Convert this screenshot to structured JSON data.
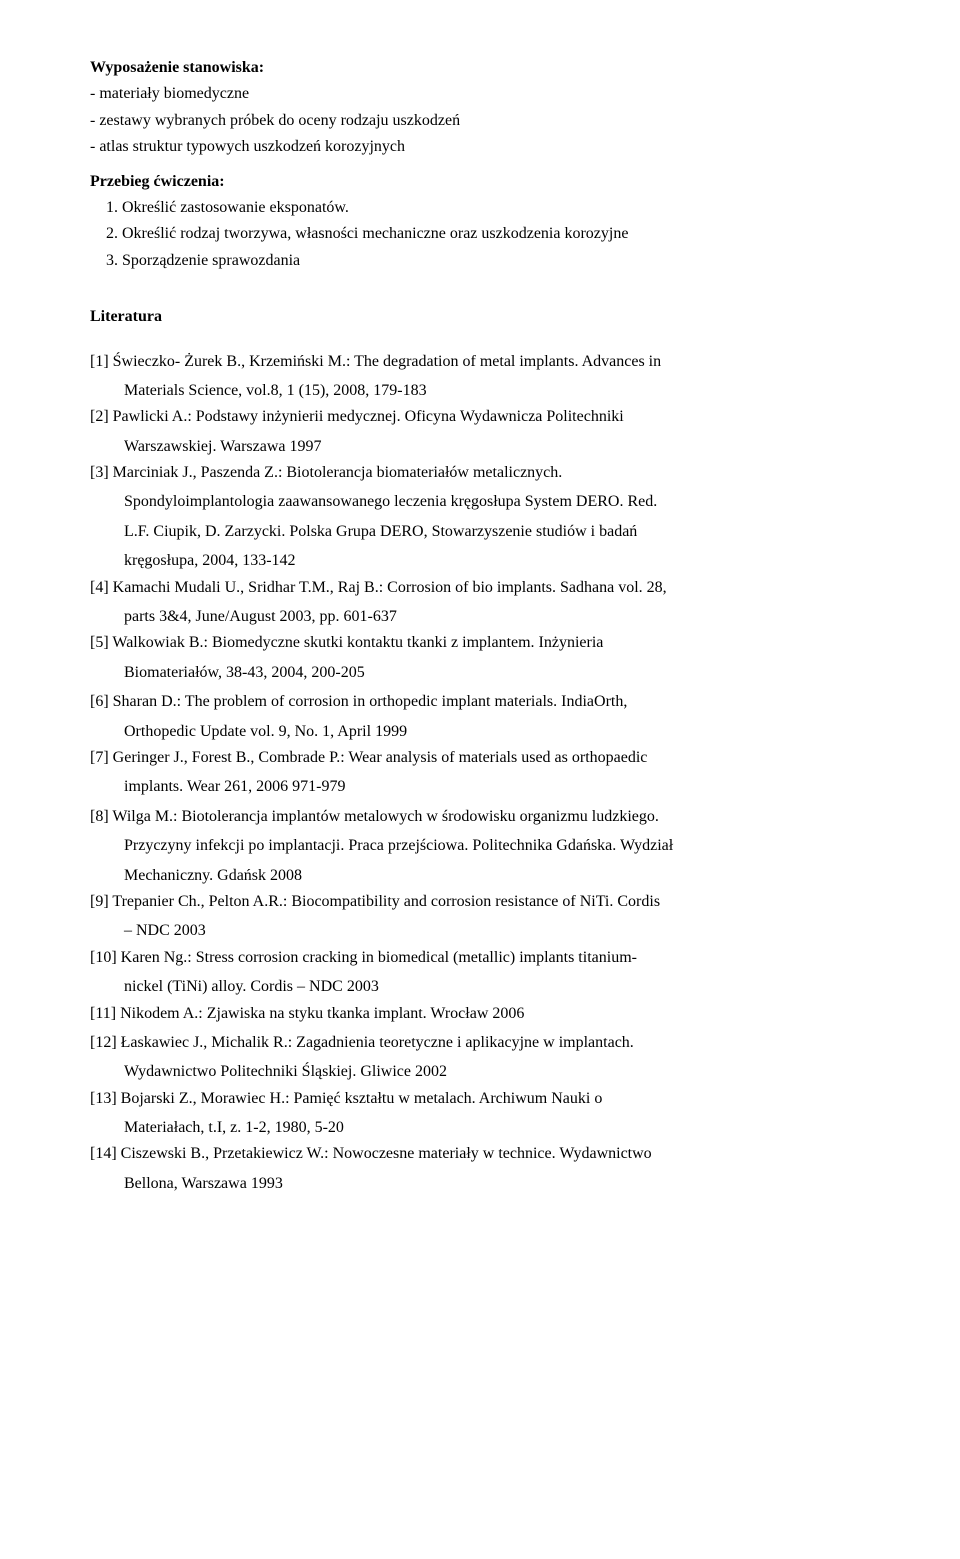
{
  "section1": {
    "title": "Wyposażenie stanowiska:",
    "items": [
      "- materiały biomedyczne",
      "- zestawy wybranych próbek do oceny rodzaju uszkodzeń",
      "- atlas struktur typowych uszkodzeń korozyjnych"
    ]
  },
  "section2": {
    "title": "Przebieg ćwiczenia:",
    "items": [
      "1.   Określić zastosowanie eksponatów.",
      "2.   Określić rodzaj tworzywa, własności mechaniczne oraz uszkodzenia korozyjne",
      "3.   Sporządzenie sprawozdania"
    ]
  },
  "literature": {
    "heading": "Literatura",
    "refs": [
      {
        "l1": "[1] Świeczko- Żurek B., Krzemiński M.: The degradation of metal implants. Advances in",
        "l2": "Materials Science, vol.8, 1 (15), 2008, 179-183"
      },
      {
        "l1": "[2] Pawlicki A.: Podstawy inżynierii medycznej. Oficyna Wydawnicza Politechniki",
        "l2": "Warszawskiej. Warszawa 1997"
      },
      {
        "l1": "[3] Marciniak J., Paszenda Z.: Biotolerancja biomateriałów metalicznych.",
        "l2": "Spondyloimplantologia zaawansowanego leczenia kręgosłupa System DERO. Red.",
        "l3": "L.F. Ciupik, D. Zarzycki. Polska Grupa DERO, Stowarzyszenie studiów i badań",
        "l4": "kręgosłupa, 2004, 133-142"
      },
      {
        "l1": "[4] Kamachi Mudali U., Sridhar T.M., Raj B.: Corrosion of bio implants. Sadhana vol. 28,",
        "l2": "parts 3&4, June/August 2003, pp. 601-637"
      },
      {
        "l1": "[5] Walkowiak B.: Biomedyczne skutki kontaktu tkanki z implantem. Inżynieria",
        "l2": "Biomateriałów, 38-43, 2004, 200-205"
      },
      {
        "l1": "[6] Sharan D.: The problem of corrosion in orthopedic implant materials. IndiaOrth,",
        "l2": "Orthopedic Update vol. 9, No. 1, April 1999"
      },
      {
        "l1": "[7] Geringer J., Forest B., Combrade P.: Wear analysis of materials used as orthopaedic",
        "l2": "implants. Wear 261, 2006 971-979"
      },
      {
        "l1": "[8] Wilga M.: Biotolerancja implantów metalowych w środowisku organizmu ludzkiego.",
        "l2": "Przyczyny infekcji po implantacji. Praca przejściowa. Politechnika Gdańska. Wydział",
        "l3": "Mechaniczny. Gdańsk 2008"
      },
      {
        "l1": "[9] Trepanier Ch., Pelton A.R.: Biocompatibility and corrosion resistance of NiTi. Cordis",
        "l2": "– NDC 2003"
      },
      {
        "l1": "[10] Karen Ng.: Stress corrosion cracking in biomedical (metallic) implants titanium-",
        "l2": "nickel (TiNi) alloy. Cordis – NDC  2003"
      },
      {
        "l1": "[11] Nikodem A.: Zjawiska na styku tkanka implant. Wrocław 2006"
      },
      {
        "l1": "[12] Łaskawiec J., Michalik R.: Zagadnienia teoretyczne i aplikacyjne w implantach.",
        "l2": "Wydawnictwo Politechniki Śląskiej. Gliwice 2002"
      },
      {
        "l1": "[13] Bojarski Z., Morawiec H.: Pamięć kształtu w metalach. Archiwum Nauki o",
        "l2": "Materiałach, t.I, z. 1-2, 1980, 5-20"
      },
      {
        "l1": "[14] Ciszewski B., Przetakiewicz W.: Nowoczesne materiały w technice. Wydawnictwo",
        "l2": "Bellona, Warszawa 1993"
      }
    ]
  }
}
